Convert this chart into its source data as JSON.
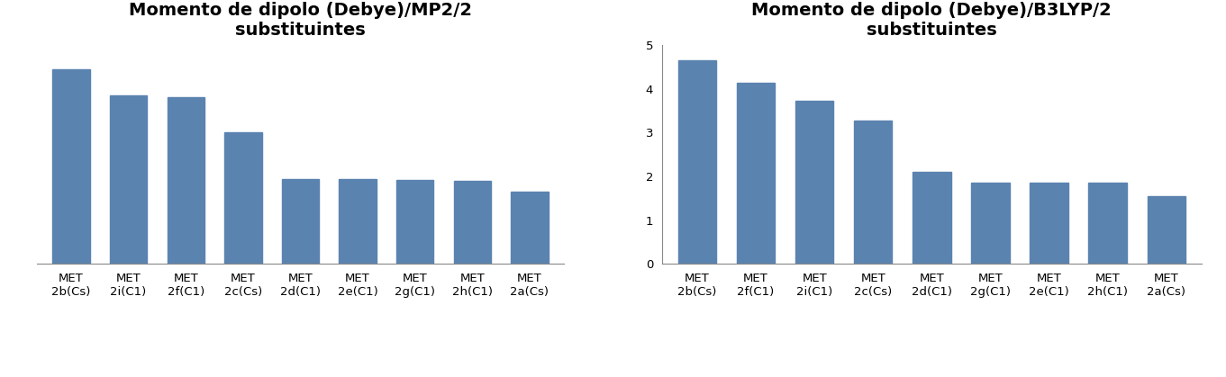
{
  "mp2": {
    "title": "Momento de dipolo (Debye)/MP2/2\nsubstituintes",
    "categories": [
      "MET\n2b(Cs)",
      "MET\n2i(C1)",
      "MET\n2f(C1)",
      "MET\n2c(Cs)",
      "MET\n2d(C1)",
      "MET\n2e(C1)",
      "MET\n2g(C1)",
      "MET\n2h(C1)",
      "MET\n2a(Cs)"
    ],
    "values": [
      4.45,
      3.85,
      3.82,
      3.0,
      1.95,
      1.93,
      1.91,
      1.9,
      1.65
    ],
    "bar_color": "#5B83B0",
    "ylim": [
      0,
      5.0
    ],
    "show_yticks": false
  },
  "b3lyp": {
    "title": "Momento de dipolo (Debye)/B3LYP/2\nsubstituintes",
    "categories": [
      "MET\n2b(Cs)",
      "MET\n2f(C1)",
      "MET\n2i(C1)",
      "MET\n2c(Cs)",
      "MET\n2d(C1)",
      "MET\n2g(C1)",
      "MET\n2e(C1)",
      "MET\n2h(C1)",
      "MET\n2a(Cs)"
    ],
    "values": [
      4.65,
      4.15,
      3.72,
      3.28,
      2.1,
      1.85,
      1.85,
      1.85,
      1.55
    ],
    "bar_color": "#5B83B0",
    "ylim": [
      0,
      5.0
    ],
    "yticks": [
      0,
      1,
      2,
      3,
      4,
      5
    ],
    "show_yticks": true
  },
  "background_color": "#ffffff",
  "title_fontsize": 14,
  "tick_fontsize": 9.5,
  "bar_width": 0.65
}
